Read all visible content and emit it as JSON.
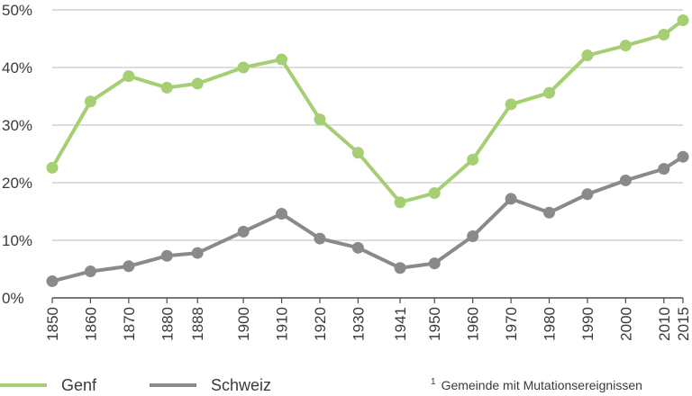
{
  "chart_data": {
    "type": "line",
    "x": [
      "1850",
      "1860",
      "1870",
      "1880",
      "1888",
      "1900",
      "1910",
      "1920",
      "1930",
      "1941",
      "1950",
      "1960",
      "1970",
      "1980",
      "1990",
      "2000",
      "2010",
      "2015"
    ],
    "x_numeric": [
      1850,
      1860,
      1870,
      1880,
      1888,
      1900,
      1910,
      1920,
      1930,
      1941,
      1950,
      1960,
      1970,
      1980,
      1990,
      2000,
      2010,
      2015
    ],
    "series": [
      {
        "name": "Genf",
        "color": "#a6cf74",
        "values": [
          22.6,
          34.1,
          38.5,
          36.5,
          37.2,
          40.0,
          41.4,
          31.0,
          25.2,
          16.6,
          18.2,
          24.0,
          33.6,
          35.6,
          42.1,
          43.8,
          45.7,
          48.2
        ]
      },
      {
        "name": "Schweiz",
        "color": "#8a8a8a",
        "values": [
          2.9,
          4.6,
          5.5,
          7.3,
          7.8,
          11.5,
          14.6,
          10.3,
          8.7,
          5.2,
          6.0,
          10.7,
          17.2,
          14.8,
          18.0,
          20.4,
          22.4,
          24.5
        ]
      }
    ],
    "yticks": [
      "0%",
      "10%",
      "20%",
      "30%",
      "40%",
      "50%"
    ],
    "ylim": [
      0,
      50
    ],
    "grid": true,
    "legend": "bottom-left"
  },
  "legend": {
    "items": [
      {
        "label": "Genf",
        "color": "#a6cf74"
      },
      {
        "label": "Schweiz",
        "color": "#8a8a8a"
      }
    ]
  },
  "footnote": {
    "marker": "1",
    "text": "Gemeinde mit Mutationsereignissen"
  }
}
